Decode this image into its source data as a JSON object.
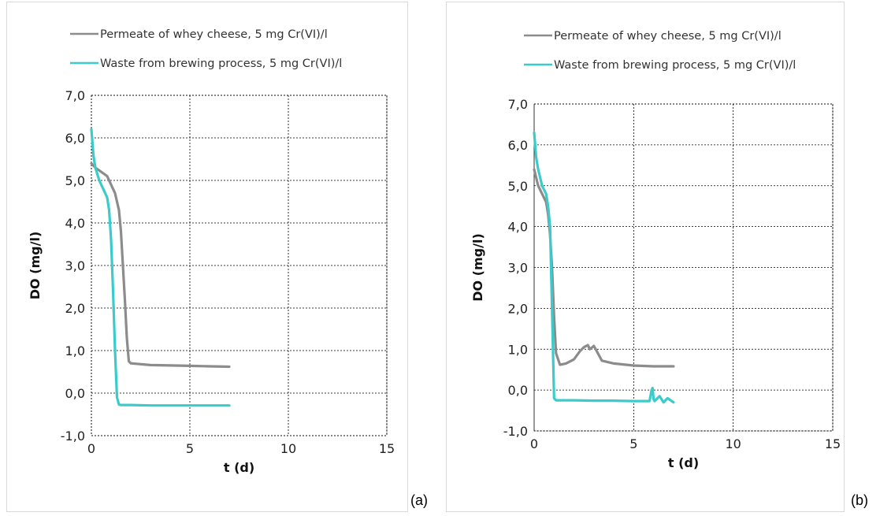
{
  "panel_labels": [
    "(a)",
    "(b)"
  ],
  "colors": {
    "whey": "#8c8c8c",
    "brewing": "#3ccbcb",
    "grid": "#000000",
    "frame": "#d9d9d9"
  },
  "chart_data": [
    {
      "type": "line",
      "panel": "(a)",
      "xlabel": "t (d)",
      "ylabel": "DO (mg/l)",
      "xlim": [
        0,
        15
      ],
      "ylim": [
        -1,
        7
      ],
      "xticks": [
        "0",
        "5",
        "10",
        "15"
      ],
      "yticks": [
        "-1,0",
        "0,0",
        "1,0",
        "2,0",
        "3,0",
        "4,0",
        "5,0",
        "6,0",
        "7,0"
      ],
      "grid": "dashed",
      "legend_position": "top",
      "series": [
        {
          "name": "Permeate of whey cheese, 5 mg Cr(VI)/l",
          "color": "#8c8c8c",
          "x": [
            0,
            0.2,
            0.5,
            0.8,
            1.0,
            1.2,
            1.3,
            1.4,
            1.5,
            1.6,
            1.7,
            1.8,
            1.9,
            2.0,
            3.0,
            4.0,
            5.0,
            6.0,
            7.0
          ],
          "y": [
            5.4,
            5.3,
            5.2,
            5.1,
            4.9,
            4.7,
            4.5,
            4.3,
            3.8,
            3.0,
            2.2,
            1.3,
            0.75,
            0.7,
            0.66,
            0.65,
            0.64,
            0.63,
            0.62
          ]
        },
        {
          "name": "Waste from brewing process, 5 mg Cr(VI)/l",
          "color": "#3ccbcb",
          "x": [
            0,
            0.05,
            0.1,
            0.2,
            0.4,
            0.6,
            0.8,
            0.9,
            1.0,
            1.1,
            1.2,
            1.3,
            1.4,
            1.5,
            2.0,
            3.0,
            4.0,
            5.0,
            6.0,
            7.0
          ],
          "y": [
            6.2,
            5.9,
            5.6,
            5.3,
            5.0,
            4.8,
            4.6,
            4.3,
            3.6,
            2.4,
            1.0,
            -0.1,
            -0.27,
            -0.28,
            -0.28,
            -0.29,
            -0.29,
            -0.29,
            -0.29,
            -0.29
          ]
        }
      ]
    },
    {
      "type": "line",
      "panel": "(b)",
      "xlabel": "t (d)",
      "ylabel": "DO (mg/l)",
      "xlim": [
        0,
        15
      ],
      "ylim": [
        -1,
        7
      ],
      "xticks": [
        "0",
        "5",
        "10",
        "15"
      ],
      "yticks": [
        "-1,0",
        "0,0",
        "1,0",
        "2,0",
        "3,0",
        "4,0",
        "5,0",
        "6,0",
        "7,0"
      ],
      "grid": "dashed",
      "legend_position": "top",
      "series": [
        {
          "name": "Permeate of whey cheese, 5 mg Cr(VI)/l",
          "color": "#8c8c8c",
          "x": [
            0,
            0.2,
            0.4,
            0.6,
            0.7,
            0.8,
            0.9,
            1.0,
            1.1,
            1.3,
            1.6,
            2.0,
            2.3,
            2.5,
            2.7,
            2.8,
            3.0,
            3.2,
            3.4,
            4.0,
            5.0,
            6.0,
            7.0
          ],
          "y": [
            5.4,
            5.0,
            4.8,
            4.6,
            4.3,
            3.8,
            3.0,
            1.8,
            0.9,
            0.62,
            0.65,
            0.75,
            0.95,
            1.05,
            1.1,
            1.0,
            1.08,
            0.9,
            0.72,
            0.65,
            0.6,
            0.58,
            0.58
          ]
        },
        {
          "name": "Waste from brewing process, 5 mg Cr(VI)/l",
          "color": "#3ccbcb",
          "x": [
            0,
            0.05,
            0.1,
            0.2,
            0.4,
            0.6,
            0.7,
            0.8,
            0.9,
            1.0,
            1.1,
            1.3,
            2.0,
            3.0,
            4.0,
            5.0,
            5.8,
            5.9,
            5.95,
            6.0,
            6.05,
            6.3,
            6.5,
            6.7,
            7.0
          ],
          "y": [
            6.3,
            6.0,
            5.7,
            5.4,
            5.0,
            4.8,
            4.5,
            4.0,
            2.0,
            -0.2,
            -0.25,
            -0.25,
            -0.25,
            -0.26,
            -0.26,
            -0.27,
            -0.27,
            0.0,
            0.05,
            -0.22,
            -0.27,
            -0.15,
            -0.3,
            -0.2,
            -0.3
          ]
        }
      ]
    }
  ]
}
